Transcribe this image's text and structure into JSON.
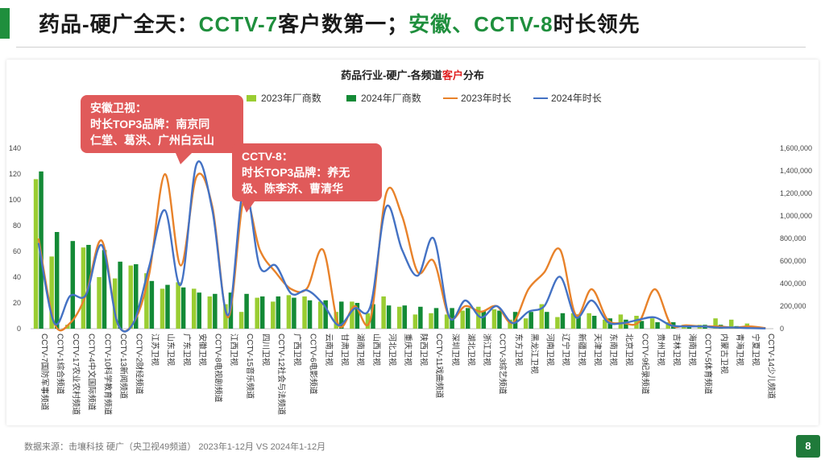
{
  "slide": {
    "title_prefix": "药品-硬广全天：",
    "title_part1": "CCTV-7",
    "title_part2": "客户数第一；",
    "title_part3": "安徽、CCTV-8",
    "title_part4": "时长领先",
    "page_number": "8",
    "source_text": "数据来源：击壤科技 硬广（央卫视49频道） 2023年1-12月 VS 2024年1-12月",
    "colors": {
      "accent": "#1f8f3d",
      "callout": "#e05a5a"
    }
  },
  "callouts": [
    {
      "line1": "安徽卫视：",
      "line2": "时长TOP3品牌：南京同",
      "line3": "仁堂、葛洪、广州白云山"
    },
    {
      "line1": "CCTV-8：",
      "line2": "时长TOP3品牌：养无",
      "line3": "极、陈李济、曹清华"
    }
  ],
  "chart_data": {
    "type": "bar",
    "title_prefix": "药品行业-硬广-各频道",
    "title_highlight": "客户",
    "title_suffix": "分布",
    "categories": [
      "CCTV-7国防军事频道",
      "CCTV-1综合频道",
      "CCTV-17农业农村频道",
      "CCTV-4中文国际频道",
      "CCTV-10科学教育频道",
      "CCTV-13新闻频道",
      "CCTV-2财经频道",
      "江苏卫视",
      "山东卫视",
      "广东卫视",
      "安徽卫视",
      "CCTV-8电视剧频道",
      "江西卫视",
      "CCTV-15音乐频道",
      "四川卫视",
      "CCTV-12社会与法频道",
      "广西卫视",
      "CCTV-6电影频道",
      "云南卫视",
      "甘肃卫视",
      "湖南卫视",
      "山西卫视",
      "河北卫视",
      "重庆卫视",
      "陕西卫视",
      "CCTV-11戏曲频道",
      "深圳卫视",
      "湖北卫视",
      "浙江卫视",
      "CCTV-3综艺频道",
      "东方卫视",
      "黑龙江卫视",
      "河南卫视",
      "辽宁卫视",
      "新疆卫视",
      "天津卫视",
      "东南卫视",
      "北京卫视",
      "CCTV-9纪录频道",
      "贵州卫视",
      "吉林卫视",
      "海南卫视",
      "CCTV-5体育频道",
      "内蒙古卫视",
      "青海卫视",
      "宁夏卫视",
      "CCTV-14少儿频道"
    ],
    "left_axis": {
      "min": 0,
      "max": 140,
      "ticks": [
        0,
        20,
        40,
        60,
        80,
        100,
        120,
        140
      ]
    },
    "right_axis": {
      "min": 0,
      "max": 1600000,
      "ticks": [
        "0",
        "200,000",
        "400,000",
        "600,000",
        "800,000",
        "1,000,000",
        "1,200,000",
        "1,400,000",
        "1,600,000"
      ]
    },
    "series": [
      {
        "name": "2023年厂商数",
        "type": "bar",
        "axis": "left",
        "color": "#9acd32",
        "values": [
          116,
          56,
          3,
          63,
          40,
          39,
          49,
          43,
          31,
          36,
          31,
          25,
          19,
          13,
          24,
          21,
          26,
          25,
          21,
          13,
          21,
          12,
          25,
          17,
          11,
          12,
          11,
          14,
          17,
          15,
          7,
          8,
          19,
          9,
          12,
          12,
          7,
          11,
          10,
          8,
          5,
          3,
          3,
          8,
          7,
          4,
          1
        ]
      },
      {
        "name": "2024年厂商数",
        "type": "bar",
        "axis": "left",
        "color": "#138a36",
        "values": [
          122,
          75,
          68,
          65,
          61,
          52,
          50,
          37,
          34,
          32,
          28,
          27,
          28,
          27,
          25,
          25,
          24,
          22,
          22,
          21,
          20,
          19,
          18,
          18,
          17,
          16,
          16,
          16,
          14,
          14,
          13,
          13,
          13,
          12,
          11,
          10,
          8,
          7,
          6,
          5,
          5,
          3,
          3,
          3,
          2,
          0,
          0
        ]
      },
      {
        "name": "2023年时长",
        "type": "line",
        "axis": "right",
        "color": "#e8822a",
        "values": [
          800000,
          50000,
          50000,
          300000,
          780000,
          50000,
          50000,
          480000,
          1370000,
          560000,
          1350000,
          1080000,
          100000,
          1150000,
          700000,
          500000,
          350000,
          360000,
          700000,
          30000,
          200000,
          80000,
          1200000,
          1000000,
          500000,
          600000,
          100000,
          200000,
          150000,
          200000,
          50000,
          350000,
          500000,
          700000,
          120000,
          350000,
          80000,
          50000,
          60000,
          350000,
          40000,
          30000,
          20000,
          20000,
          10000,
          20000,
          5000
        ]
      },
      {
        "name": "2024年时长",
        "type": "line",
        "axis": "right",
        "color": "#4472c4",
        "values": [
          760000,
          50000,
          290000,
          300000,
          740000,
          50000,
          50000,
          550000,
          1050000,
          390000,
          1460000,
          1050000,
          120000,
          1260000,
          550000,
          560000,
          310000,
          340000,
          220000,
          30000,
          180000,
          200000,
          1080000,
          700000,
          470000,
          800000,
          100000,
          250000,
          100000,
          200000,
          50000,
          150000,
          200000,
          460000,
          100000,
          250000,
          60000,
          50000,
          80000,
          100000,
          30000,
          20000,
          20000,
          10000,
          10000,
          5000,
          2000
        ]
      }
    ],
    "legend_position": "top",
    "grid": false
  }
}
